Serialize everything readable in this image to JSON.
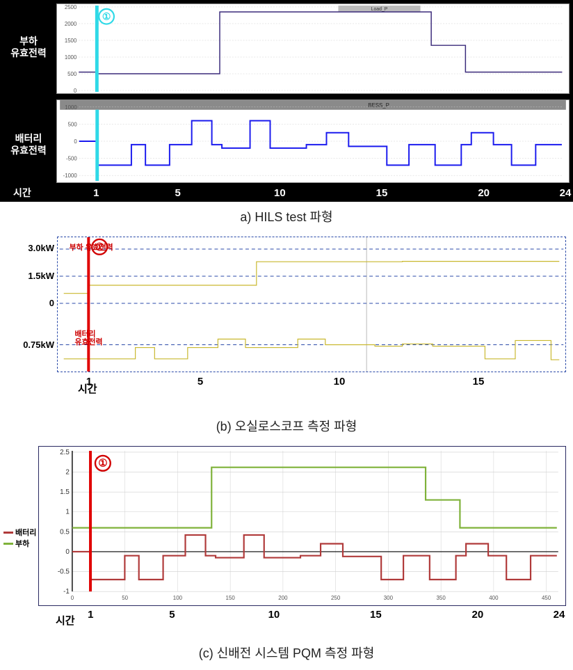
{
  "panelA": {
    "caption": "a) HILS test 파형",
    "time_label": "시간",
    "row_labels": {
      "top": "부하\n유효전력",
      "bot": "배터리\n유효전력"
    },
    "series_tags": {
      "top": "Load_P",
      "bot": "BESS_P"
    },
    "marker": {
      "text": "①",
      "color": "#2fd9e7",
      "bar_color": "#2fd9e7"
    },
    "x_domain": [
      0,
      24
    ],
    "x_ticks": [
      1,
      5,
      10,
      15,
      20,
      24
    ],
    "top": {
      "ylim": [
        0,
        2500
      ],
      "yticks": [
        0,
        500,
        1000,
        1500,
        2000,
        2500
      ],
      "grid_color": "#cfcfcf",
      "line_color": "#3a2a7a",
      "line_width": 1.5,
      "bg": "#ffffff",
      "points": [
        [
          0,
          550
        ],
        [
          0.9,
          550
        ],
        [
          0.9,
          500
        ],
        [
          7,
          500
        ],
        [
          7,
          2350
        ],
        [
          17.5,
          2350
        ],
        [
          17.5,
          1350
        ],
        [
          19.2,
          1350
        ],
        [
          19.2,
          550
        ],
        [
          24,
          550
        ]
      ]
    },
    "bot": {
      "ylim": [
        -1000,
        1000
      ],
      "yticks": [
        -1000,
        -500,
        0,
        500,
        1000
      ],
      "grid_color": "#cfcfcf",
      "line_color": "#1a1aee",
      "line_width": 2,
      "bg": "#ffffff",
      "tag_bg": "#8a8a8a",
      "points": [
        [
          0,
          0
        ],
        [
          0.9,
          0
        ],
        [
          0.9,
          -700
        ],
        [
          2.6,
          -700
        ],
        [
          2.6,
          -100
        ],
        [
          3.3,
          -100
        ],
        [
          3.3,
          -700
        ],
        [
          4.5,
          -700
        ],
        [
          4.5,
          -100
        ],
        [
          5.6,
          -100
        ],
        [
          5.6,
          600
        ],
        [
          6.6,
          600
        ],
        [
          6.6,
          -100
        ],
        [
          7.1,
          -100
        ],
        [
          7.1,
          -200
        ],
        [
          8.5,
          -200
        ],
        [
          8.5,
          600
        ],
        [
          9.5,
          600
        ],
        [
          9.5,
          -200
        ],
        [
          11.3,
          -200
        ],
        [
          11.3,
          -100
        ],
        [
          12.3,
          -100
        ],
        [
          12.3,
          250
        ],
        [
          13.4,
          250
        ],
        [
          13.4,
          -150
        ],
        [
          15.3,
          -150
        ],
        [
          15.3,
          -700
        ],
        [
          16.4,
          -700
        ],
        [
          16.4,
          -100
        ],
        [
          17.7,
          -100
        ],
        [
          17.7,
          -700
        ],
        [
          19.0,
          -700
        ],
        [
          19.0,
          -100
        ],
        [
          19.5,
          -100
        ],
        [
          19.5,
          250
        ],
        [
          20.6,
          250
        ],
        [
          20.6,
          -100
        ],
        [
          21.5,
          -100
        ],
        [
          21.5,
          -700
        ],
        [
          22.7,
          -700
        ],
        [
          22.7,
          -100
        ],
        [
          24,
          -100
        ]
      ]
    }
  },
  "panelB": {
    "caption": "(b) 오실로스코프 측정 파형",
    "time_label": "시간",
    "marker": {
      "text": "①",
      "color": "#d10000",
      "bar_color": "#e00000"
    },
    "x_domain": [
      0,
      18
    ],
    "x_ticks": [
      1,
      5,
      10,
      15
    ],
    "trace_color": "#c9b82f",
    "trace_width": 1.2,
    "grid_major_color": "#b9b9b9",
    "grid_dash": "5,4",
    "border_dash_color": "#2a4aa8",
    "labels": {
      "load": "부하 유효전력",
      "batt": "배터리\n유효전력"
    },
    "top": {
      "y_domain": [
        -0.5,
        3.5
      ],
      "yticks": [
        {
          "v": 3.0,
          "label": "3.0kW"
        },
        {
          "v": 1.5,
          "label": "1.5kW"
        },
        {
          "v": 0,
          "label": "0"
        }
      ],
      "points": [
        [
          0,
          0.55
        ],
        [
          0.9,
          0.55
        ],
        [
          0.9,
          1.0
        ],
        [
          7,
          1.0
        ],
        [
          7,
          2.3
        ],
        [
          12.3,
          2.3
        ],
        [
          12.3,
          2.32
        ],
        [
          18,
          2.32
        ]
      ]
    },
    "bot": {
      "y_domain": [
        -1.6,
        0.2
      ],
      "yticks": [
        {
          "v": -0.75,
          "label": "0.75kW"
        }
      ],
      "points": [
        [
          0,
          -1.25
        ],
        [
          0.9,
          -1.25
        ],
        [
          0.9,
          -1.25
        ],
        [
          2.6,
          -1.25
        ],
        [
          2.6,
          -0.85
        ],
        [
          3.3,
          -0.85
        ],
        [
          3.3,
          -1.25
        ],
        [
          4.5,
          -1.25
        ],
        [
          4.5,
          -0.85
        ],
        [
          5.6,
          -0.85
        ],
        [
          5.6,
          -0.55
        ],
        [
          6.6,
          -0.55
        ],
        [
          6.6,
          -0.85
        ],
        [
          8.5,
          -0.85
        ],
        [
          8.5,
          -0.55
        ],
        [
          9.5,
          -0.55
        ],
        [
          9.5,
          -0.75
        ],
        [
          11.3,
          -0.75
        ],
        [
          11.3,
          -0.8
        ],
        [
          12.3,
          -0.8
        ],
        [
          12.3,
          -0.72
        ],
        [
          13.4,
          -0.72
        ],
        [
          13.4,
          -0.8
        ],
        [
          15.3,
          -0.8
        ],
        [
          15.3,
          -1.25
        ],
        [
          16.4,
          -1.25
        ],
        [
          16.4,
          -0.6
        ],
        [
          17.7,
          -0.6
        ],
        [
          17.7,
          -1.28
        ],
        [
          18,
          -1.28
        ]
      ]
    }
  },
  "panelC": {
    "caption": "(c) 신배전 시스템 PQM 측정 파형",
    "time_label": "시간",
    "marker": {
      "text": "①",
      "color": "#d10000",
      "bar_color": "#e00000"
    },
    "x_domain": [
      0,
      24
    ],
    "x_ticks_outer": [
      1,
      5,
      10,
      15,
      20,
      24
    ],
    "x_inner_ticks": [
      0,
      50,
      100,
      150,
      200,
      250,
      300,
      350,
      400,
      450
    ],
    "x_inner_domain": [
      0,
      460
    ],
    "ylim": [
      -1,
      2.5
    ],
    "yticks": [
      -1,
      -0.5,
      0,
      0.5,
      1,
      1.5,
      2,
      2.5
    ],
    "grid_color": "#cfcfcf",
    "axis_color": "#000",
    "legend": [
      {
        "name": "배터리",
        "color": "#b03a3a"
      },
      {
        "name": "부하",
        "color": "#7fb23a"
      }
    ],
    "series": {
      "load": {
        "color": "#7fb23a",
        "width": 2.2,
        "points": [
          [
            0,
            0.6
          ],
          [
            0.9,
            0.6
          ],
          [
            0.9,
            0.6
          ],
          [
            6.9,
            0.6
          ],
          [
            6.9,
            2.12
          ],
          [
            17.5,
            2.12
          ],
          [
            17.5,
            1.3
          ],
          [
            19.2,
            1.3
          ],
          [
            19.2,
            0.6
          ],
          [
            24,
            0.6
          ]
        ]
      },
      "batt": {
        "color": "#b03a3a",
        "width": 2.2,
        "points": [
          [
            0,
            0.0
          ],
          [
            0.9,
            0.0
          ],
          [
            0.9,
            -0.7
          ],
          [
            2.6,
            -0.7
          ],
          [
            2.6,
            -0.1
          ],
          [
            3.3,
            -0.1
          ],
          [
            3.3,
            -0.7
          ],
          [
            4.5,
            -0.7
          ],
          [
            4.5,
            -0.1
          ],
          [
            5.6,
            -0.1
          ],
          [
            5.6,
            0.42
          ],
          [
            6.6,
            0.42
          ],
          [
            6.6,
            -0.1
          ],
          [
            7.1,
            -0.1
          ],
          [
            7.1,
            -0.15
          ],
          [
            8.5,
            -0.15
          ],
          [
            8.5,
            0.42
          ],
          [
            9.5,
            0.42
          ],
          [
            9.5,
            -0.15
          ],
          [
            11.3,
            -0.15
          ],
          [
            11.3,
            -0.1
          ],
          [
            12.3,
            -0.1
          ],
          [
            12.3,
            0.2
          ],
          [
            13.4,
            0.2
          ],
          [
            13.4,
            -0.12
          ],
          [
            15.3,
            -0.12
          ],
          [
            15.3,
            -0.7
          ],
          [
            16.4,
            -0.7
          ],
          [
            16.4,
            -0.1
          ],
          [
            17.7,
            -0.1
          ],
          [
            17.7,
            -0.7
          ],
          [
            19.0,
            -0.7
          ],
          [
            19.0,
            -0.1
          ],
          [
            19.5,
            -0.1
          ],
          [
            19.5,
            0.2
          ],
          [
            20.6,
            0.2
          ],
          [
            20.6,
            -0.1
          ],
          [
            21.5,
            -0.1
          ],
          [
            21.5,
            -0.7
          ],
          [
            22.7,
            -0.7
          ],
          [
            22.7,
            -0.1
          ],
          [
            24,
            -0.1
          ]
        ]
      }
    }
  }
}
